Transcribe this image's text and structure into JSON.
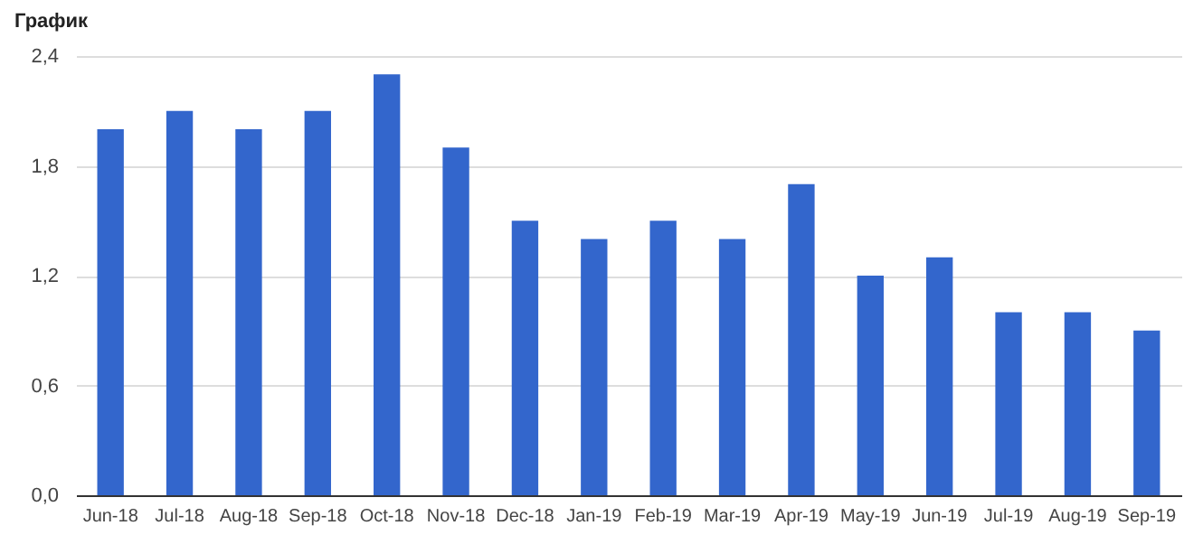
{
  "chart_data": {
    "type": "bar",
    "title": "График",
    "categories": [
      "Jun-18",
      "Jul-18",
      "Aug-18",
      "Sep-18",
      "Oct-18",
      "Nov-18",
      "Dec-18",
      "Jan-19",
      "Feb-19",
      "Mar-19",
      "Apr-19",
      "May-19",
      "Jun-19",
      "Jul-19",
      "Aug-19",
      "Sep-19"
    ],
    "values": [
      2.0,
      2.1,
      2.0,
      2.1,
      2.3,
      1.9,
      1.5,
      1.4,
      1.5,
      1.4,
      1.7,
      1.2,
      1.3,
      1.0,
      1.0,
      0.9
    ],
    "color": "#3366cc",
    "ylim": [
      0,
      2.4
    ],
    "yticks": [
      {
        "value": 0,
        "label": "0,0"
      },
      {
        "value": 0.6,
        "label": "0,6"
      },
      {
        "value": 1.2,
        "label": "1,2"
      },
      {
        "value": 1.8,
        "label": "1,8"
      },
      {
        "value": 2.4,
        "label": "2,4"
      }
    ],
    "grid": "y"
  }
}
